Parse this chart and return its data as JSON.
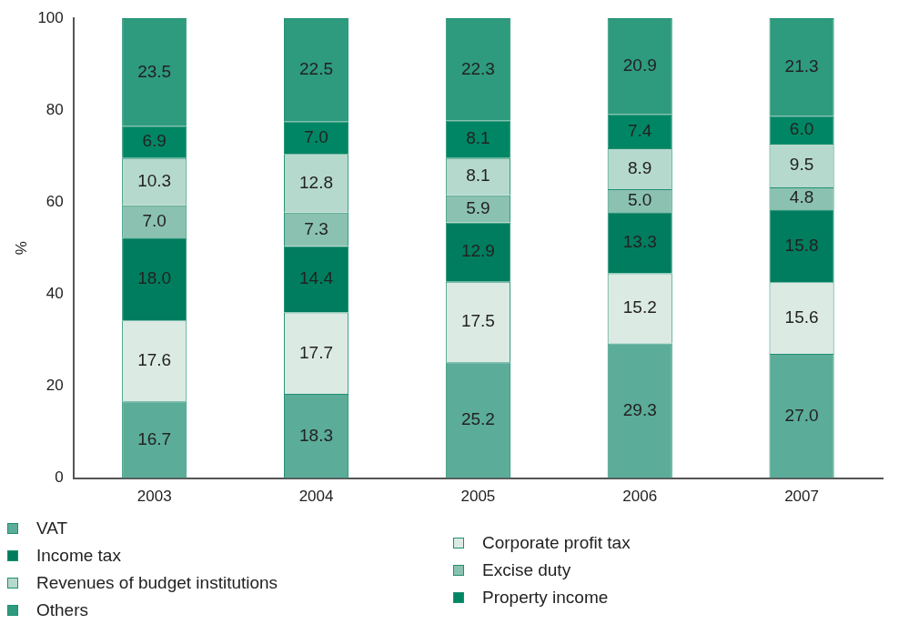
{
  "chart_data": {
    "type": "bar",
    "stacked": true,
    "ylabel": "%",
    "categories": [
      "2003",
      "2004",
      "2005",
      "2006",
      "2007"
    ],
    "ylim": [
      0,
      100
    ],
    "yticks": [
      0,
      20,
      40,
      60,
      80,
      100
    ],
    "grid": false,
    "legend": "bottom",
    "series": [
      {
        "name": "VAT",
        "color": "#5bac98",
        "values": [
          16.7,
          18.3,
          25.2,
          29.3,
          27.0
        ],
        "value_labels": [
          "16.7",
          "18.3",
          "25.2",
          "29.3",
          "27.0"
        ]
      },
      {
        "name": "Corporate profit tax",
        "color": "#dceae4",
        "values": [
          17.6,
          17.7,
          17.5,
          15.2,
          15.6
        ],
        "value_labels": [
          "17.6",
          "17.7",
          "17.5",
          "15.2",
          "15.6"
        ]
      },
      {
        "name": "Income tax",
        "color": "#007d5e",
        "values": [
          18.0,
          14.4,
          12.9,
          13.3,
          15.8
        ],
        "value_labels": [
          "18.0",
          "14.4",
          "12.9",
          "13.3",
          "15.8"
        ]
      },
      {
        "name": "Excise duty",
        "color": "#8bc1b0",
        "values": [
          7.0,
          7.3,
          5.9,
          5.0,
          4.8
        ],
        "value_labels": [
          "7.0",
          "7.3",
          "5.9",
          "5.0",
          "4.8"
        ]
      },
      {
        "name": "Revenues of budget institutions",
        "color": "#b6d9cd",
        "values": [
          10.3,
          12.8,
          8.1,
          8.9,
          9.5
        ],
        "value_labels": [
          "10.3",
          "12.8",
          "8.1",
          "8.9",
          "9.5"
        ]
      },
      {
        "name": "Property income",
        "color": "#008664",
        "values": [
          6.9,
          7.0,
          8.1,
          7.4,
          6.0
        ],
        "value_labels": [
          "6.9",
          "7.0",
          "8.1",
          "7.4",
          "6.0"
        ]
      },
      {
        "name": "Others",
        "color": "#2e9a7e",
        "values": [
          23.5,
          22.5,
          22.3,
          20.9,
          21.3
        ],
        "value_labels": [
          "23.5",
          "22.5",
          "22.3",
          "20.9",
          "21.3"
        ]
      }
    ]
  }
}
